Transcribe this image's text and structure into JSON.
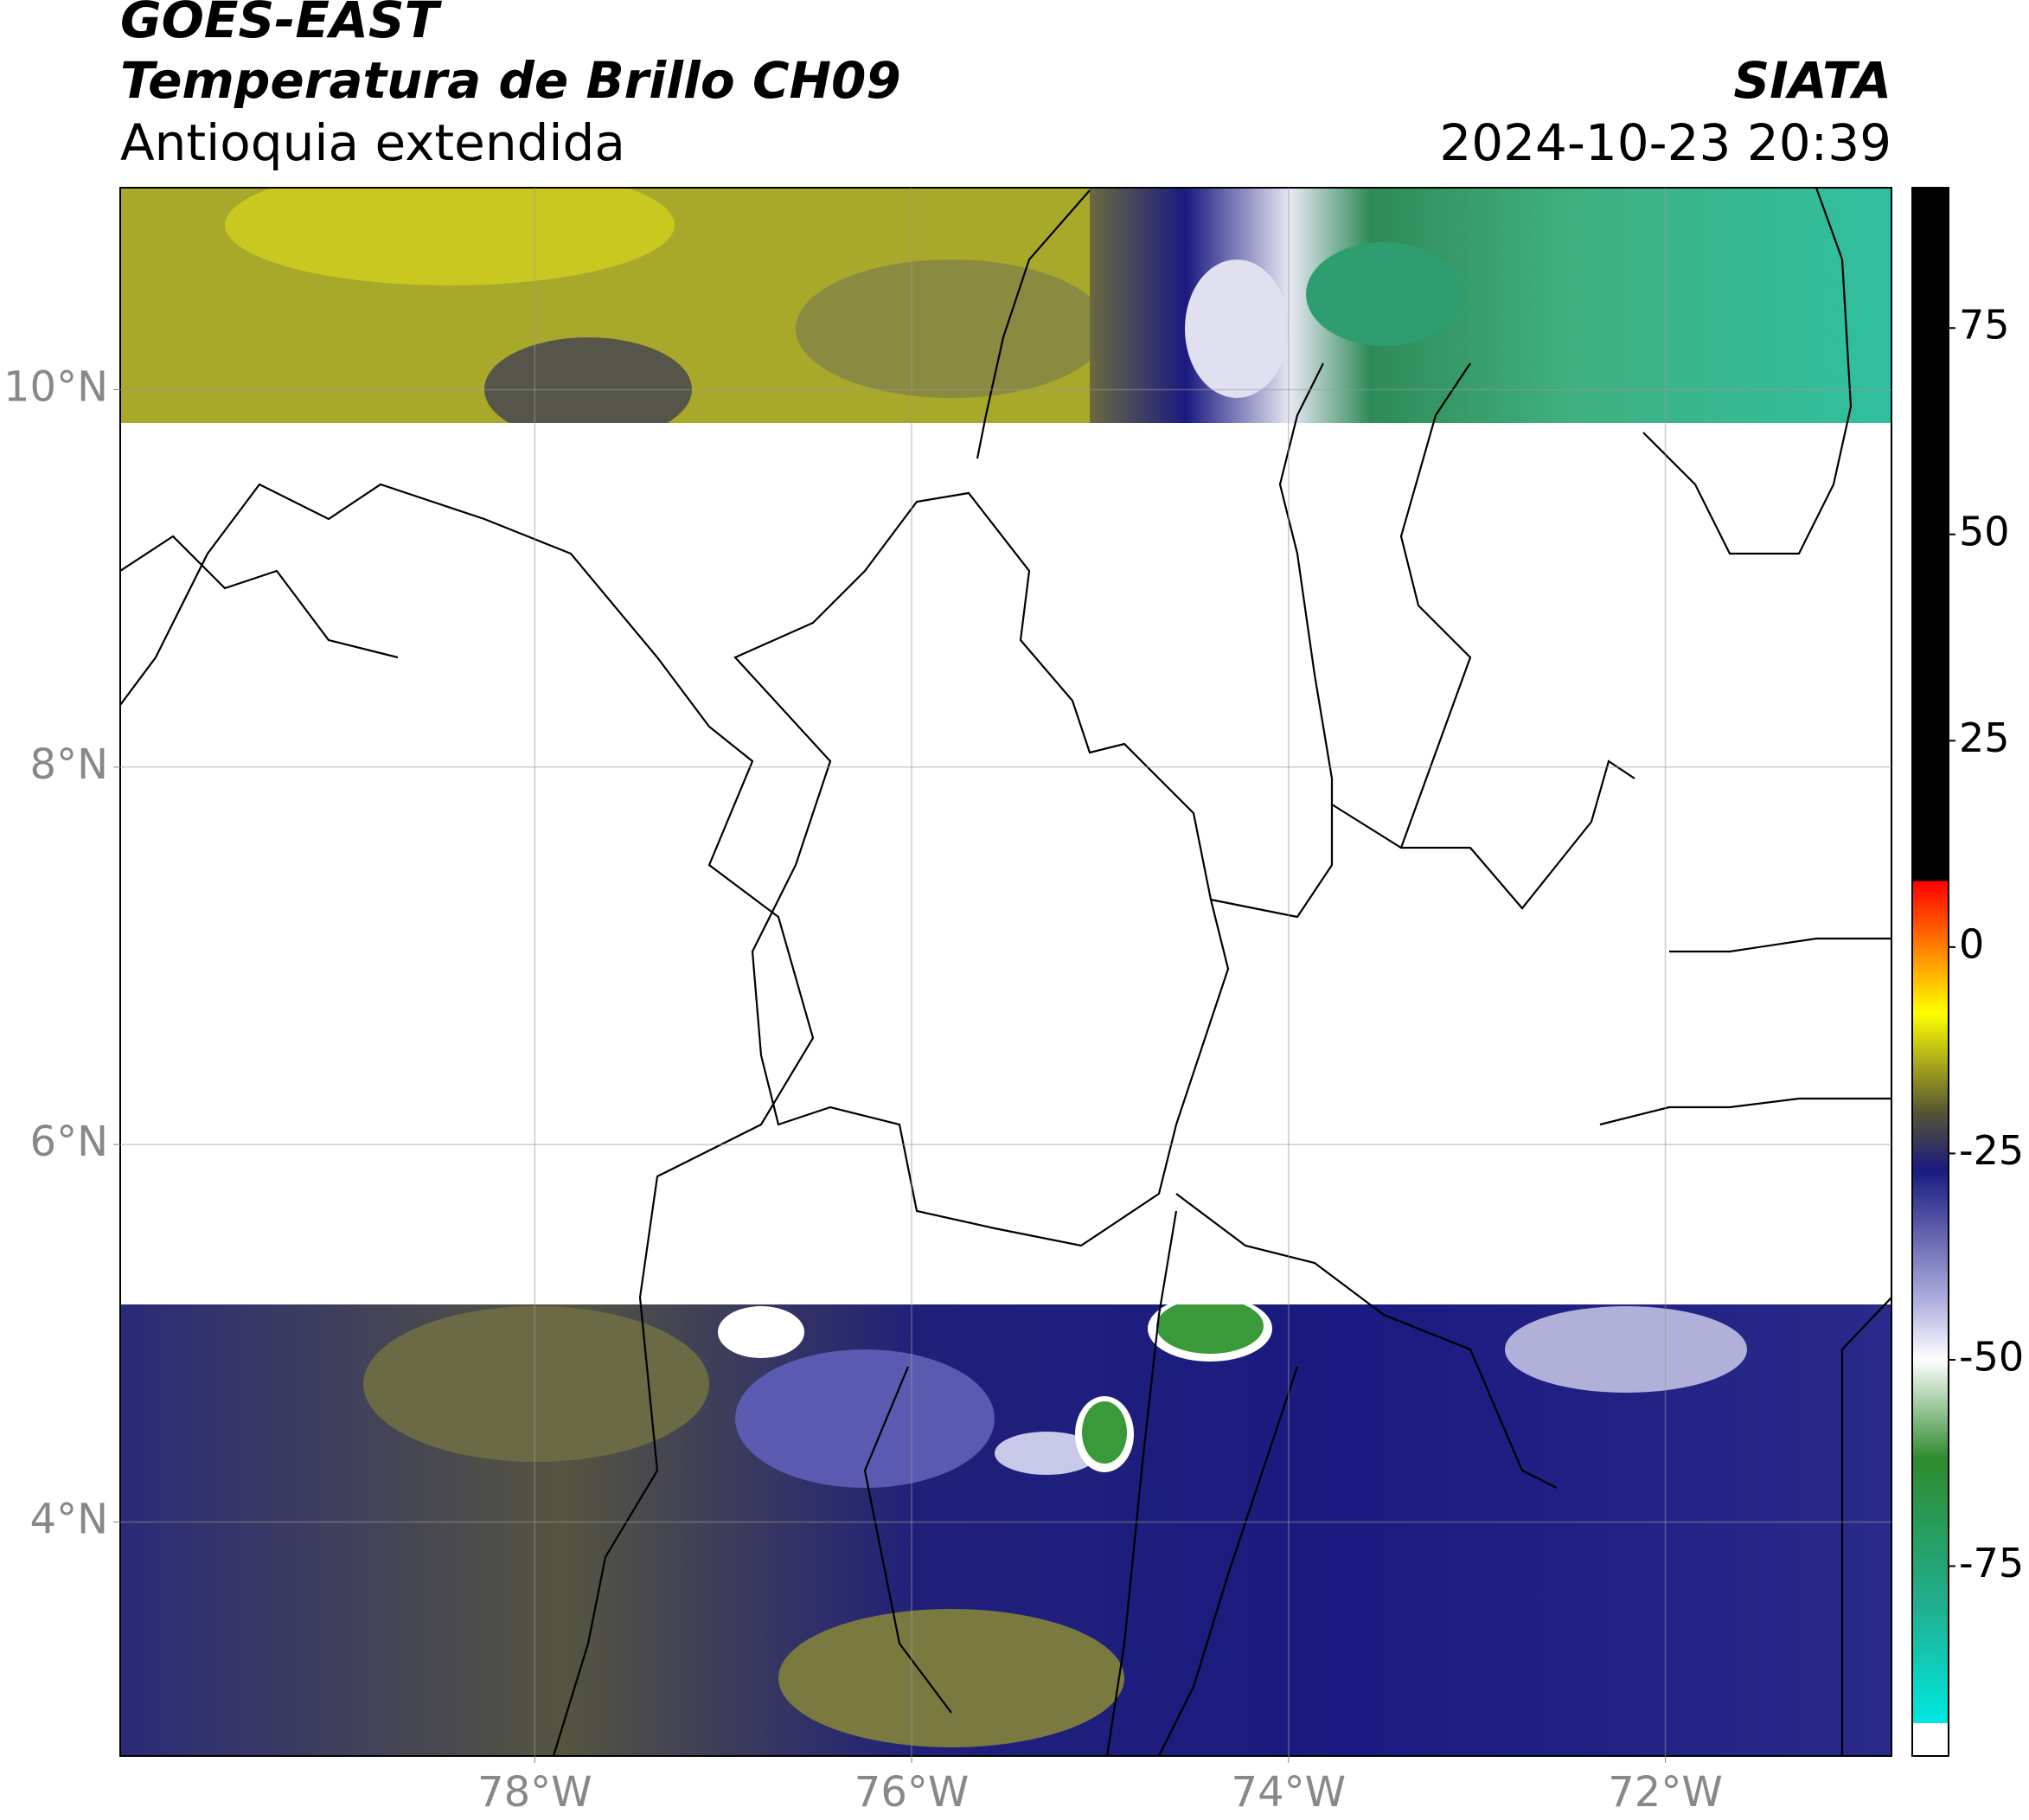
{
  "header": {
    "title": "GOES-EAST",
    "subtitle": "Temperatura de Brillo CH09",
    "region": "Antioquia extendida",
    "source": "SIATA",
    "datetime": "2024-10-23 20:39"
  },
  "map": {
    "xlim": [
      -80.2,
      -70.8
    ],
    "ylim": [
      2.76,
      11.07
    ],
    "xticks": [
      {
        "value": -78,
        "label": "78°W"
      },
      {
        "value": -76,
        "label": "76°W"
      },
      {
        "value": -74,
        "label": "74°W"
      },
      {
        "value": -72,
        "label": "72°W"
      }
    ],
    "yticks": [
      {
        "value": 10,
        "label": "10°N"
      },
      {
        "value": 8,
        "label": "8°N"
      },
      {
        "value": 6,
        "label": "6°N"
      },
      {
        "value": 4,
        "label": "4°N"
      }
    ],
    "grid": true
  },
  "colorbar": {
    "lim": [
      -98,
      92
    ],
    "ticks": [
      75,
      50,
      25,
      0,
      -25,
      -50,
      -75
    ],
    "colorscale": [
      [
        92,
        "#000000"
      ],
      [
        8,
        "#000000"
      ],
      [
        8,
        "#ff0000"
      ],
      [
        -8,
        "#ffff00"
      ],
      [
        -20,
        "#555533"
      ],
      [
        -27,
        "#1a1a80"
      ],
      [
        -43,
        "#b0b0e0"
      ],
      [
        -50,
        "#ffffff"
      ],
      [
        -62,
        "#2e8b2e"
      ],
      [
        -80,
        "#20b090"
      ],
      [
        -94,
        "#00e8e0"
      ],
      [
        -94,
        "#ffffff"
      ],
      [
        -98,
        "#ffffff"
      ]
    ]
  }
}
